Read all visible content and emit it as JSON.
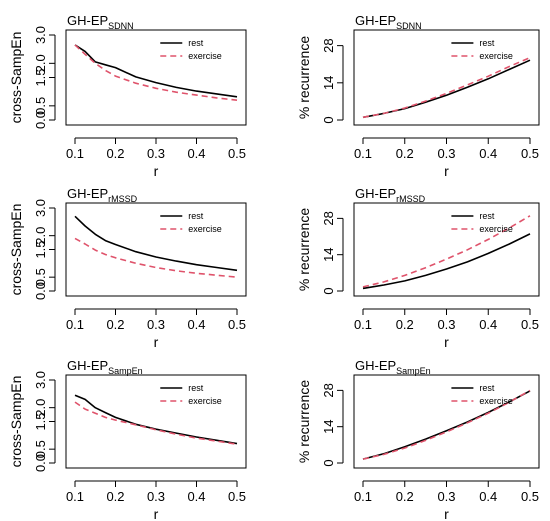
{
  "legend": {
    "rest": "rest",
    "exercise": "exercise"
  },
  "colors": {
    "rest": "#000000",
    "exercise": "#df536b"
  },
  "chart_data": [
    {
      "type": "line",
      "title_main": "GH-EP",
      "title_sub": "SDNN",
      "xlabel": "r",
      "ylabel": "cross-SampEn",
      "xlim": [
        0.1,
        0.5
      ],
      "ylim": [
        0,
        3
      ],
      "xticks": [
        "0.1",
        "0.2",
        "0.3",
        "0.4",
        "0.5"
      ],
      "yticks": [
        "0.0",
        "0.5",
        "1.5",
        "2.0",
        "3.0"
      ],
      "ytick_values": [
        0,
        0.5,
        1.5,
        2,
        3
      ],
      "legend_position": "top-right",
      "grid": false,
      "x": [
        0.1,
        0.125,
        0.15,
        0.175,
        0.2,
        0.25,
        0.3,
        0.35,
        0.4,
        0.45,
        0.5
      ],
      "series": [
        {
          "name": "rest",
          "values": [
            2.65,
            2.42,
            2.05,
            1.95,
            1.85,
            1.52,
            1.32,
            1.15,
            1.02,
            0.92,
            0.82
          ]
        },
        {
          "name": "exercise",
          "values": [
            2.65,
            2.32,
            2.0,
            1.75,
            1.55,
            1.3,
            1.12,
            0.98,
            0.88,
            0.78,
            0.7
          ]
        }
      ]
    },
    {
      "type": "line",
      "title_main": "GH-EP",
      "title_sub": "SDNN",
      "xlabel": "r",
      "ylabel": "% recurrence",
      "xlim": [
        0.1,
        0.5
      ],
      "ylim": [
        0,
        32
      ],
      "xticks": [
        "0.1",
        "0.2",
        "0.3",
        "0.4",
        "0.5"
      ],
      "yticks": [
        "0",
        "14",
        "28"
      ],
      "ytick_values": [
        0,
        14,
        28
      ],
      "legend_position": "top-right",
      "grid": false,
      "x": [
        0.1,
        0.15,
        0.2,
        0.25,
        0.3,
        0.35,
        0.4,
        0.45,
        0.5
      ],
      "series": [
        {
          "name": "rest",
          "values": [
            1.0,
            2.5,
            4.3,
            6.7,
            9.3,
            12.3,
            15.5,
            19.0,
            22.5
          ]
        },
        {
          "name": "exercise",
          "values": [
            1.0,
            2.5,
            4.5,
            7.1,
            10.0,
            13.2,
            16.5,
            20.1,
            23.5
          ]
        }
      ]
    },
    {
      "type": "line",
      "title_main": "GH-EP",
      "title_sub": "rMSSD",
      "xlabel": "r",
      "ylabel": "cross-SampEn",
      "xlim": [
        0.1,
        0.5
      ],
      "ylim": [
        0,
        3
      ],
      "xticks": [
        "0.1",
        "0.2",
        "0.3",
        "0.4",
        "0.5"
      ],
      "yticks": [
        "0.0",
        "0.5",
        "1.5",
        "2.0",
        "3.0"
      ],
      "ytick_values": [
        0,
        0.5,
        1.5,
        2,
        3
      ],
      "legend_position": "top-right",
      "grid": false,
      "x": [
        0.1,
        0.125,
        0.15,
        0.175,
        0.2,
        0.25,
        0.3,
        0.35,
        0.4,
        0.45,
        0.5
      ],
      "series": [
        {
          "name": "rest",
          "values": [
            2.7,
            2.35,
            2.05,
            1.82,
            1.68,
            1.42,
            1.23,
            1.08,
            0.95,
            0.85,
            0.75
          ]
        },
        {
          "name": "exercise",
          "values": [
            1.9,
            1.7,
            1.48,
            1.32,
            1.2,
            1.0,
            0.85,
            0.73,
            0.64,
            0.57,
            0.5
          ]
        }
      ]
    },
    {
      "type": "line",
      "title_main": "GH-EP",
      "title_sub": "rMSSD",
      "xlabel": "r",
      "ylabel": "% recurrence",
      "xlim": [
        0.1,
        0.5
      ],
      "ylim": [
        0,
        32
      ],
      "xticks": [
        "0.1",
        "0.2",
        "0.3",
        "0.4",
        "0.5"
      ],
      "yticks": [
        "0",
        "14",
        "28"
      ],
      "ytick_values": [
        0,
        14,
        28
      ],
      "legend_position": "top-right",
      "grid": false,
      "x": [
        0.1,
        0.15,
        0.2,
        0.25,
        0.3,
        0.35,
        0.4,
        0.45,
        0.5
      ],
      "series": [
        {
          "name": "rest",
          "values": [
            1.0,
            2.3,
            3.9,
            6.0,
            8.5,
            11.2,
            14.5,
            18.1,
            22.0
          ]
        },
        {
          "name": "exercise",
          "values": [
            1.6,
            3.5,
            6.0,
            9.0,
            12.3,
            15.9,
            19.9,
            24.3,
            29.0
          ]
        }
      ]
    },
    {
      "type": "line",
      "title_main": "GH-EP",
      "title_sub": "SampEn",
      "xlabel": "r",
      "ylabel": "cross-SampEn",
      "xlim": [
        0.1,
        0.5
      ],
      "ylim": [
        0,
        3
      ],
      "xticks": [
        "0.1",
        "0.2",
        "0.3",
        "0.4",
        "0.5"
      ],
      "yticks": [
        "0.0",
        "0.5",
        "1.5",
        "2.0",
        "3.0"
      ],
      "ytick_values": [
        0,
        0.5,
        1.5,
        2,
        3
      ],
      "legend_position": "top-right",
      "grid": false,
      "x": [
        0.1,
        0.125,
        0.15,
        0.175,
        0.2,
        0.25,
        0.3,
        0.35,
        0.4,
        0.45,
        0.5
      ],
      "series": [
        {
          "name": "rest",
          "values": [
            2.45,
            2.3,
            2.0,
            1.82,
            1.65,
            1.4,
            1.22,
            1.08,
            0.94,
            0.82,
            0.7
          ]
        },
        {
          "name": "exercise",
          "values": [
            2.2,
            1.95,
            1.8,
            1.65,
            1.55,
            1.38,
            1.2,
            1.04,
            0.9,
            0.79,
            0.68
          ]
        }
      ]
    },
    {
      "type": "line",
      "title_main": "GH-EP",
      "title_sub": "SampEn",
      "xlabel": "r",
      "ylabel": "% recurrence",
      "xlim": [
        0.1,
        0.5
      ],
      "ylim": [
        0,
        32
      ],
      "xticks": [
        "0.1",
        "0.2",
        "0.3",
        "0.4",
        "0.5"
      ],
      "yticks": [
        "0",
        "14",
        "28"
      ],
      "ytick_values": [
        0,
        14,
        28
      ],
      "legend_position": "top-right",
      "grid": false,
      "x": [
        0.1,
        0.15,
        0.2,
        0.25,
        0.3,
        0.35,
        0.4,
        0.45,
        0.5
      ],
      "series": [
        {
          "name": "rest",
          "values": [
            1.5,
            3.6,
            6.3,
            9.2,
            12.4,
            15.8,
            19.5,
            23.5,
            27.8
          ]
        },
        {
          "name": "exercise",
          "values": [
            1.5,
            3.3,
            5.8,
            8.7,
            12.0,
            15.5,
            19.2,
            23.4,
            28.0
          ]
        }
      ]
    }
  ]
}
